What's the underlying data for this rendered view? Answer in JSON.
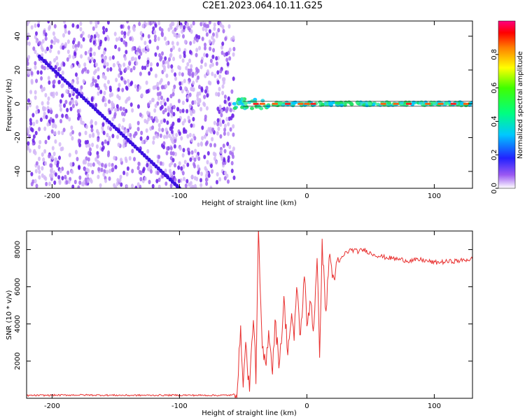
{
  "title": "C2E1.2023.064.10.11.G25",
  "chart_data": [
    {
      "type": "heatmap",
      "xlabel": "Height of straight line (km)",
      "ylabel": "Frequency (Hz)",
      "xlim": [
        -220,
        130
      ],
      "ylim": [
        -50,
        49
      ],
      "xticks": [
        -200,
        -100,
        0,
        100
      ],
      "yticks": [
        -40,
        -20,
        0,
        20,
        40
      ],
      "colorbar": {
        "label": "Normalized spectral amplitude",
        "range": [
          0,
          1
        ],
        "ticks": [
          "0.0",
          "0.2",
          "0.4",
          "0.6",
          "0.8"
        ]
      },
      "description_points": {
        "noise_region_x": [
          -220,
          -57
        ],
        "signal_band": {
          "x": [
            -57,
            130
          ],
          "center_freq_hz": [
            -2,
            1
          ]
        },
        "diagonal_trace": {
          "x": [
            -210,
            -100
          ],
          "freq_hz": [
            28,
            -50
          ]
        }
      }
    },
    {
      "type": "line",
      "xlabel": "Height of straight line (km)",
      "ylabel": "SNR (10 * v/v)",
      "xlim": [
        -220,
        130
      ],
      "ylim": [
        0,
        9000
      ],
      "xticks": [
        -200,
        -100,
        0,
        100
      ],
      "yticks": [
        2000,
        4000,
        6000,
        8000
      ],
      "series": [
        {
          "color": "#e8302f",
          "x": [
            -220,
            -180,
            -140,
            -100,
            -70,
            -58,
            -55,
            -52,
            -50,
            -48,
            -45,
            -42,
            -40,
            -38,
            -35,
            -32,
            -30,
            -27,
            -25,
            -22,
            -20,
            -18,
            -15,
            -12,
            -10,
            -8,
            -5,
            -2,
            0,
            3,
            5,
            8,
            10,
            12,
            15,
            18,
            20,
            25,
            30,
            35,
            40,
            45,
            50,
            55,
            60,
            70,
            80,
            90,
            100,
            110,
            120,
            130
          ],
          "y": [
            150,
            180,
            160,
            170,
            160,
            170,
            400,
            3500,
            1000,
            2800,
            500,
            4500,
            1200,
            8800,
            2500,
            1800,
            3800,
            1500,
            4200,
            2000,
            3200,
            5200,
            2600,
            4400,
            3000,
            6200,
            3200,
            6800,
            3800,
            5500,
            3600,
            7200,
            2600,
            8200,
            4600,
            8000,
            6400,
            7300,
            7800,
            8000,
            7900,
            8000,
            7800,
            7700,
            7600,
            7500,
            7400,
            7450,
            7300,
            7350,
            7400,
            7500
          ]
        }
      ]
    }
  ]
}
